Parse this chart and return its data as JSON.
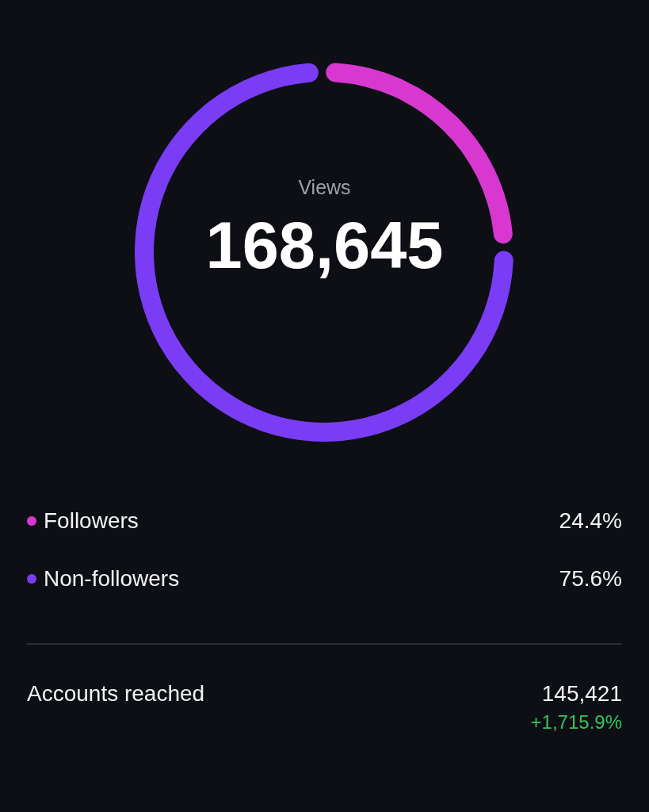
{
  "chart_data": {
    "type": "donut",
    "title": "Views",
    "subtitle": "168,645",
    "categories": [
      "Followers",
      "Non-followers"
    ],
    "values": [
      24.4,
      75.6
    ],
    "colors": [
      "#d838d0",
      "#7b3cf6"
    ],
    "value_labels": [
      "24.4%",
      "75.6%"
    ],
    "legend": "bottom",
    "annotations": [
      "Accounts reached",
      "145,421",
      "+1,715.9%"
    ]
  }
}
